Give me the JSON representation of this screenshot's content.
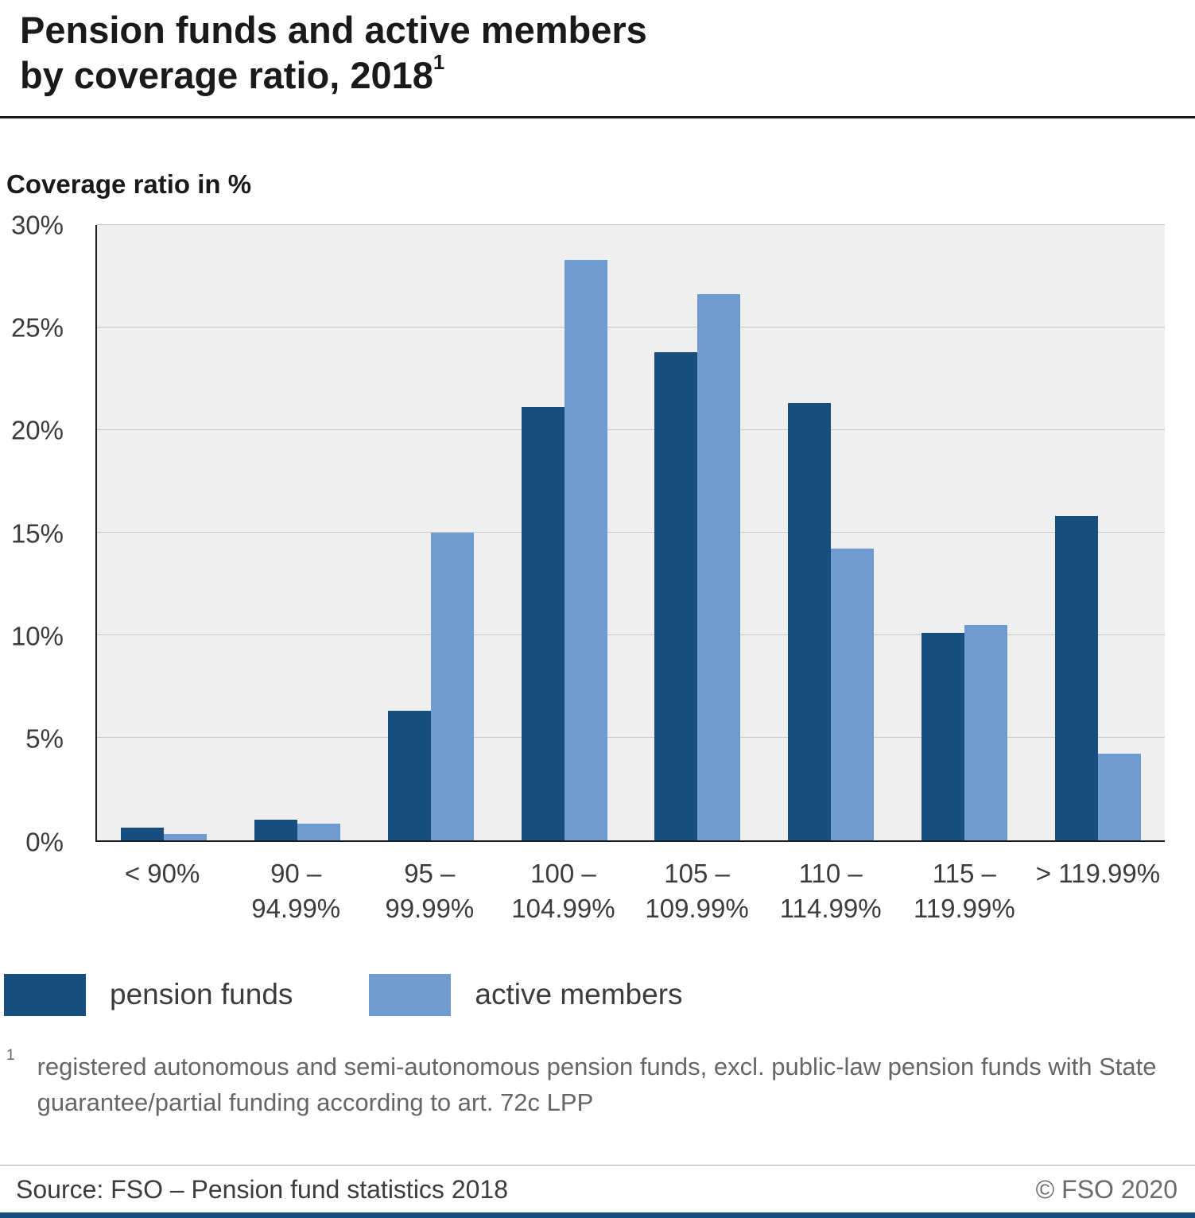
{
  "title": {
    "line1": "Pension funds and active members",
    "line2": "by coverage ratio, 2018",
    "footnote_marker": "1"
  },
  "colors": {
    "dark_blue": "#174e7d",
    "light_blue": "#6f9bd1",
    "plot_background": "#efefef"
  },
  "chart_data": {
    "type": "bar",
    "title": "Pension funds and active members by coverage ratio, 2018",
    "ylabel": "Coverage ratio in %",
    "xlabel": "",
    "categories": [
      "< 90%",
      "90 –\n94.99%",
      "95 –\n99.99%",
      "100 –\n104.99%",
      "105 –\n109.99%",
      "110 –\n114.99%",
      "115 –\n119.99%",
      "> 119.99%"
    ],
    "series": [
      {
        "name": "pension funds",
        "color": "#174e7d",
        "values": [
          0.6,
          1.0,
          6.3,
          21.1,
          23.8,
          21.3,
          10.1,
          15.8
        ]
      },
      {
        "name": "active members",
        "color": "#6f9bd1",
        "values": [
          0.3,
          0.8,
          15.0,
          28.3,
          26.6,
          14.2,
          10.5,
          4.2
        ]
      }
    ],
    "ylim": [
      0,
      30
    ],
    "ytick_step": 5,
    "ytick_suffix": "%",
    "grid": true,
    "legend_position": "bottom"
  },
  "footnote": {
    "marker": "1",
    "text": "registered autonomous and semi-autonomous pension funds, excl. public-law pension funds with State guarantee/partial funding according to art. 72c LPP"
  },
  "footer": {
    "source": "Source: FSO – Pension fund statistics 2018",
    "copyright": "© FSO 2020"
  }
}
